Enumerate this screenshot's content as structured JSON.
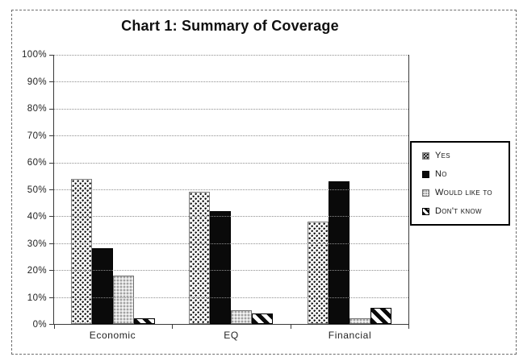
{
  "chart": {
    "title": "Chart 1: Summary of Coverage"
  },
  "chart_data": {
    "type": "bar",
    "title": "Chart 1: Summary of Coverage",
    "categories": [
      "Economic",
      "EQ",
      "Financial"
    ],
    "series": [
      {
        "name": "Yes",
        "pattern": "black-dot-stipple-on-white",
        "values": [
          54,
          49,
          38
        ]
      },
      {
        "name": "No",
        "pattern": "solid-black",
        "values": [
          28,
          42,
          53
        ]
      },
      {
        "name": "Would like to",
        "pattern": "light-gray-stipple",
        "values": [
          18,
          5,
          2
        ]
      },
      {
        "name": "Don't know",
        "pattern": "black-diagonal-stripes",
        "values": [
          2,
          4,
          6
        ]
      }
    ],
    "xlabel": "",
    "ylabel": "",
    "ylim": [
      0,
      100
    ],
    "ytick_step": 10,
    "ytick_suffix": "%",
    "grid": "horizontal",
    "legend_position": "right"
  },
  "colors": {
    "background": "#ffffff",
    "text": "#1c1c1c",
    "axis": "#3a3a3a",
    "gridline": "#8f8f8f",
    "bar_black": "#0a0a0a",
    "bar_light_gray": "#d9d9d9",
    "legend_border": "#000000",
    "frame_border": "#6e6e6e"
  }
}
